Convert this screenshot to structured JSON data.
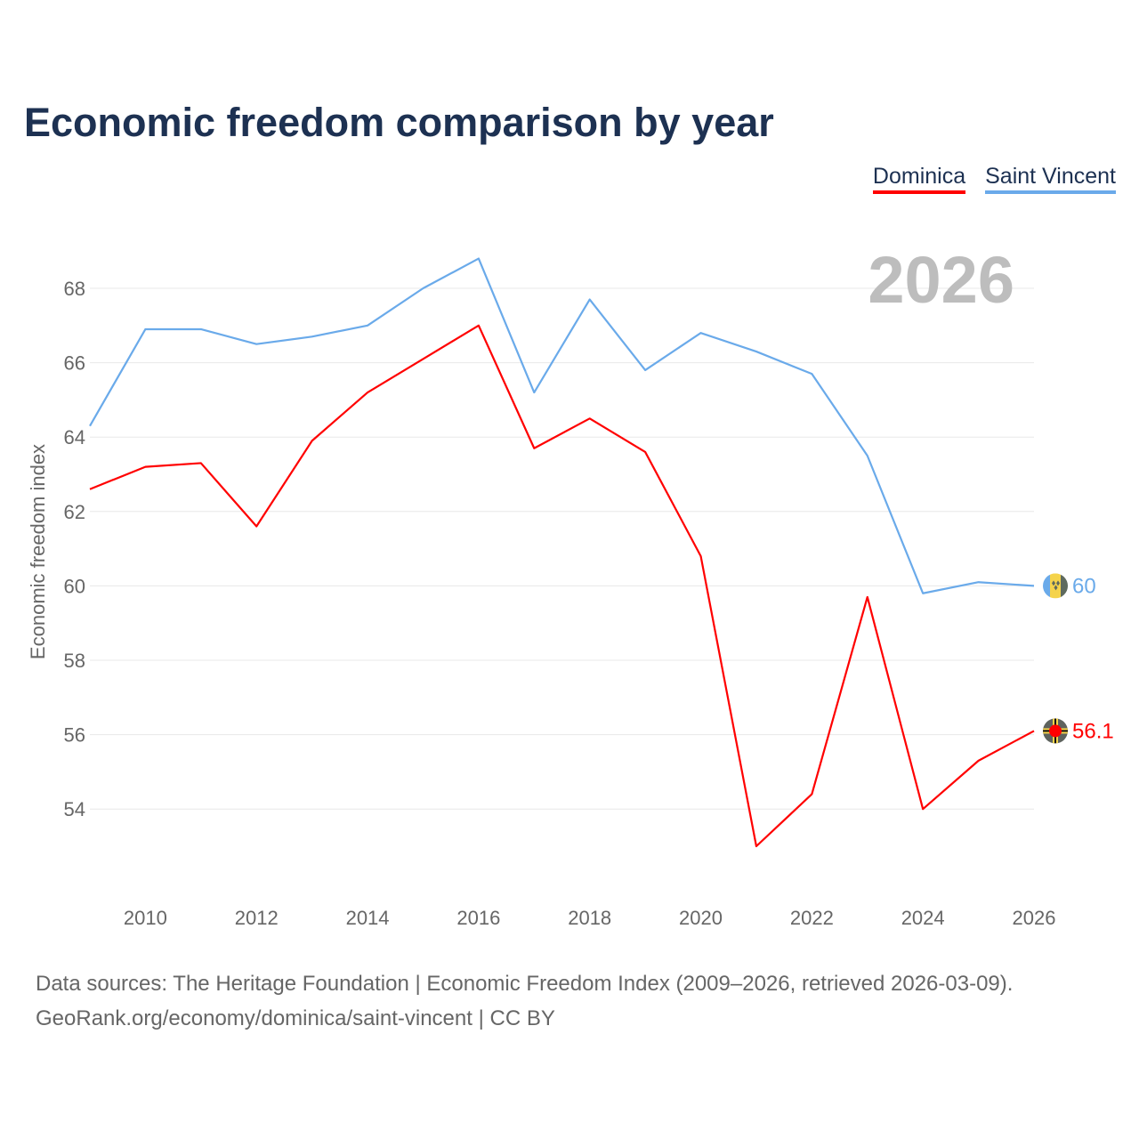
{
  "title": "Economic freedom comparison by year",
  "footer": {
    "line1": "Data sources: The Heritage Foundation | Economic Freedom Index (2009–2026, retrieved 2026-03-09).",
    "line2": "GeoRank.org/economy/dominica/saint-vincent | CC BY"
  },
  "chart_data": {
    "type": "line",
    "title": "Economic freedom comparison by year",
    "ylabel": "Economic freedom index",
    "xlabel": "",
    "year_label": "2026",
    "ylim": [
      52,
      69.5
    ],
    "xlim": [
      2009,
      2026
    ],
    "yticks": [
      54,
      56,
      58,
      60,
      62,
      64,
      66,
      68
    ],
    "xticks": [
      2010,
      2012,
      2014,
      2016,
      2018,
      2020,
      2022,
      2024,
      2026
    ],
    "grid": true,
    "legend": "top-right",
    "x": [
      2009,
      2010,
      2011,
      2012,
      2013,
      2014,
      2015,
      2016,
      2017,
      2018,
      2019,
      2020,
      2021,
      2022,
      2023,
      2024,
      2025,
      2026
    ],
    "series": [
      {
        "name": "Dominica",
        "color": "#ff0000",
        "end_label": "56.1",
        "values": [
          62.6,
          63.2,
          63.3,
          61.6,
          63.9,
          65.2,
          66.1,
          67.0,
          63.7,
          64.5,
          63.6,
          60.8,
          53.0,
          54.4,
          59.7,
          54.0,
          55.3,
          56.1
        ]
      },
      {
        "name": "Saint Vincent",
        "color": "#6aaaea",
        "end_label": "60",
        "values": [
          64.3,
          66.9,
          66.9,
          66.5,
          66.7,
          67.0,
          68.0,
          68.8,
          65.2,
          67.7,
          65.8,
          66.8,
          66.3,
          65.7,
          63.5,
          59.8,
          60.1,
          60.0
        ]
      }
    ]
  }
}
